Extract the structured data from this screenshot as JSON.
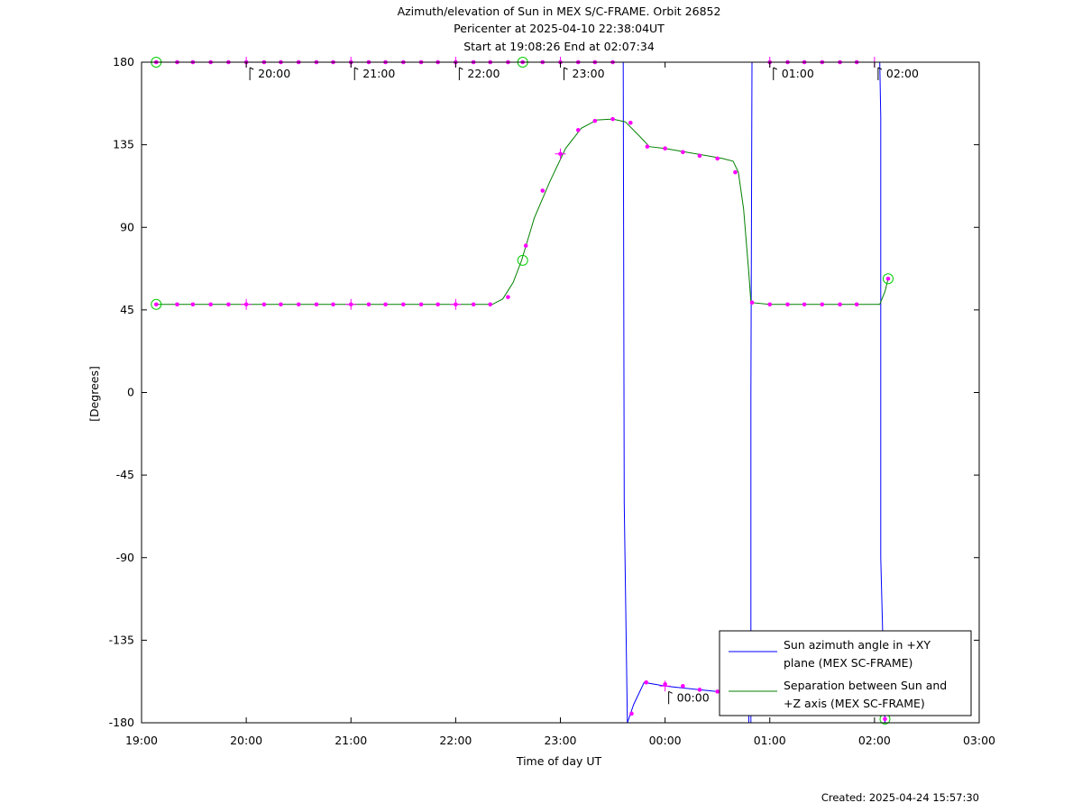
{
  "chart_data": {
    "type": "line",
    "title": "Azimuth/elevation of Sun in MEX S/C-FRAME.  Orbit 26852",
    "subtitle": "Pericenter at 2025-04-10 22:38:04UT",
    "subtitle2": "Start at 19:08:26 End at 02:07:34",
    "xlabel": "Time of day UT",
    "ylabel": "[Degrees]",
    "footer": "Created: 2025-04-24 15:57:30",
    "xlim": [
      19.0,
      27.0
    ],
    "ylim": [
      -180,
      180
    ],
    "x_ticks": [
      19,
      20,
      21,
      22,
      23,
      24,
      25,
      26,
      27
    ],
    "x_tick_labels": [
      "19:00",
      "20:00",
      "21:00",
      "22:00",
      "23:00",
      "00:00",
      "01:00",
      "02:00",
      "03:00"
    ],
    "y_ticks": [
      180,
      135,
      90,
      45,
      0,
      -45,
      -90,
      -135,
      -180
    ],
    "y_tick_labels": [
      "180",
      "135",
      "90",
      "45",
      "0",
      "-45",
      "-90",
      "-135",
      "-180"
    ],
    "grid": false,
    "legend_position": "bottom-right",
    "time_annotations": [
      {
        "x": 20.0,
        "y": 180,
        "label": "20:00"
      },
      {
        "x": 21.0,
        "y": 180,
        "label": "21:00"
      },
      {
        "x": 22.0,
        "y": 180,
        "label": "22:00"
      },
      {
        "x": 23.0,
        "y": 180,
        "label": "23:00"
      },
      {
        "x": 24.0,
        "y": -160,
        "label": "00:00"
      },
      {
        "x": 25.0,
        "y": 180,
        "label": "01:00"
      },
      {
        "x": 26.0,
        "y": 180,
        "label": "02:00"
      }
    ],
    "series": [
      {
        "name": "Sun azimuth angle in +XY plane (MEX SC-FRAME)",
        "color": "#0000ff",
        "segments": [
          [
            [
              19.14,
              180
            ],
            [
              20.0,
              180
            ],
            [
              21.0,
              180
            ],
            [
              22.0,
              180
            ],
            [
              22.64,
              180
            ],
            [
              23.0,
              180
            ],
            [
              23.6,
              180
            ],
            [
              23.61,
              -60
            ],
            [
              23.64,
              -180
            ]
          ],
          [
            [
              23.64,
              -180
            ],
            [
              23.7,
              -170
            ],
            [
              23.8,
              -158
            ],
            [
              24.0,
              -160
            ],
            [
              24.5,
              -163
            ],
            [
              24.8,
              -167
            ],
            [
              24.8,
              -180
            ]
          ],
          [
            [
              24.82,
              -180
            ],
            [
              24.82,
              0
            ],
            [
              24.83,
              180
            ]
          ],
          [
            [
              24.83,
              180
            ],
            [
              25.0,
              180
            ],
            [
              25.5,
              180
            ],
            [
              26.0,
              180
            ],
            [
              26.05,
              180
            ],
            [
              26.06,
              150
            ],
            [
              26.06,
              -90
            ],
            [
              26.1,
              -180
            ]
          ]
        ],
        "markers": [
          [
            19.14,
            180
          ],
          [
            19.34,
            180
          ],
          [
            19.49,
            180
          ],
          [
            19.66,
            180
          ],
          [
            19.83,
            180
          ],
          [
            20.0,
            180
          ],
          [
            20.17,
            180
          ],
          [
            20.33,
            180
          ],
          [
            20.5,
            180
          ],
          [
            20.67,
            180
          ],
          [
            20.83,
            180
          ],
          [
            21.0,
            180
          ],
          [
            21.17,
            180
          ],
          [
            21.33,
            180
          ],
          [
            21.5,
            180
          ],
          [
            21.67,
            180
          ],
          [
            21.83,
            180
          ],
          [
            22.0,
            180
          ],
          [
            22.17,
            180
          ],
          [
            22.33,
            180
          ],
          [
            22.5,
            180
          ],
          [
            22.64,
            180
          ],
          [
            22.83,
            180
          ],
          [
            23.0,
            180
          ],
          [
            23.17,
            180
          ],
          [
            23.33,
            180
          ],
          [
            23.5,
            180
          ],
          [
            23.68,
            -175
          ],
          [
            23.82,
            -158
          ],
          [
            24.0,
            -159
          ],
          [
            24.17,
            -160
          ],
          [
            24.33,
            -162
          ],
          [
            24.5,
            -163
          ],
          [
            25.0,
            180
          ],
          [
            25.17,
            180
          ],
          [
            25.33,
            180
          ],
          [
            25.5,
            180
          ],
          [
            25.67,
            180
          ],
          [
            25.83,
            180
          ],
          [
            26.1,
            -178
          ]
        ]
      },
      {
        "name": "Separation between Sun and +Z axis (MEX SC-FRAME)",
        "color": "#008000",
        "points": [
          [
            19.14,
            48
          ],
          [
            20.0,
            48
          ],
          [
            21.0,
            48
          ],
          [
            22.0,
            48
          ],
          [
            22.35,
            48
          ],
          [
            22.45,
            51
          ],
          [
            22.55,
            60
          ],
          [
            22.63,
            72
          ],
          [
            22.75,
            95
          ],
          [
            22.9,
            115
          ],
          [
            23.05,
            133
          ],
          [
            23.2,
            144
          ],
          [
            23.35,
            148.5
          ],
          [
            23.5,
            149
          ],
          [
            23.62,
            147.5
          ],
          [
            23.75,
            140
          ],
          [
            23.85,
            134
          ],
          [
            24.0,
            133
          ],
          [
            24.2,
            131
          ],
          [
            24.4,
            129
          ],
          [
            24.55,
            127.5
          ],
          [
            24.65,
            126
          ],
          [
            24.7,
            120
          ],
          [
            24.75,
            100
          ],
          [
            24.8,
            65
          ],
          [
            24.82,
            49
          ],
          [
            25.0,
            48
          ],
          [
            25.5,
            48
          ],
          [
            26.0,
            48
          ],
          [
            26.05,
            48
          ],
          [
            26.1,
            55
          ],
          [
            26.13,
            62
          ]
        ],
        "markers": [
          [
            19.14,
            48
          ],
          [
            19.34,
            48
          ],
          [
            19.49,
            48
          ],
          [
            19.66,
            48
          ],
          [
            19.83,
            48
          ],
          [
            20.0,
            48
          ],
          [
            20.17,
            48
          ],
          [
            20.33,
            48
          ],
          [
            20.5,
            48
          ],
          [
            20.67,
            48
          ],
          [
            20.83,
            48
          ],
          [
            21.0,
            48
          ],
          [
            21.17,
            48
          ],
          [
            21.33,
            48
          ],
          [
            21.5,
            48
          ],
          [
            21.67,
            48
          ],
          [
            21.83,
            48
          ],
          [
            22.0,
            48
          ],
          [
            22.17,
            48
          ],
          [
            22.33,
            48
          ],
          [
            22.5,
            52
          ],
          [
            22.67,
            80
          ],
          [
            22.83,
            110
          ],
          [
            23.0,
            130
          ],
          [
            23.17,
            143
          ],
          [
            23.33,
            148
          ],
          [
            23.5,
            149
          ],
          [
            23.67,
            147
          ],
          [
            23.83,
            134
          ],
          [
            24.0,
            133
          ],
          [
            24.17,
            131
          ],
          [
            24.33,
            129
          ],
          [
            24.5,
            127.5
          ],
          [
            24.67,
            120
          ],
          [
            24.83,
            49
          ],
          [
            25.0,
            48
          ],
          [
            25.17,
            48
          ],
          [
            25.33,
            48
          ],
          [
            25.5,
            48
          ],
          [
            25.67,
            48
          ],
          [
            25.83,
            48
          ],
          [
            26.13,
            62
          ]
        ]
      }
    ],
    "circle_markers": [
      [
        19.14,
        180
      ],
      [
        22.64,
        180
      ],
      [
        19.14,
        48
      ],
      [
        22.64,
        72
      ],
      [
        26.13,
        62
      ],
      [
        26.1,
        -178
      ]
    ],
    "cross_markers": [
      [
        20.0,
        180
      ],
      [
        21.0,
        180
      ],
      [
        22.0,
        180
      ],
      [
        23.0,
        180
      ],
      [
        25.0,
        180
      ],
      [
        26.0,
        180
      ],
      [
        20.0,
        48
      ],
      [
        21.0,
        48
      ],
      [
        22.0,
        48
      ],
      [
        23.0,
        130
      ],
      [
        24.0,
        -160
      ]
    ]
  }
}
